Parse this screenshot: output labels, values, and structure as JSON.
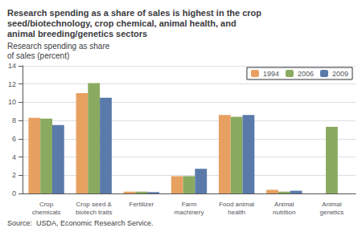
{
  "chart_data": {
    "type": "bar",
    "title": "Research spending as a share of sales is highest in the crop\nseed/biotechnology, crop chemical, animal health, and\nanimal breeding/genetics sectors",
    "ylabel": "Research spending as share\nof sales (percent)",
    "annotations": [
      "Source:  USDA, Economic Research Service."
    ],
    "categories": [
      "Crop\nchemicals",
      "Crop seed &\nbiotech traits",
      "Fertilizer",
      "Farm\nmachinery",
      "Food animal\nhealth",
      "Animal\nnutrition",
      "Animal\ngenetics"
    ],
    "series": [
      {
        "name": "1994",
        "color": "#E8A060",
        "values": [
          8.3,
          11.0,
          0.2,
          1.9,
          8.6,
          0.4,
          0.0
        ]
      },
      {
        "name": "2006",
        "color": "#8AAA60",
        "values": [
          8.2,
          12.1,
          0.2,
          1.9,
          8.4,
          0.2,
          7.3
        ]
      },
      {
        "name": "2009",
        "color": "#5A7AAA",
        "values": [
          7.5,
          10.5,
          0.15,
          2.7,
          8.6,
          0.3,
          0.0
        ]
      }
    ],
    "ylim": [
      0,
      14
    ],
    "yticks": [
      0,
      2,
      4,
      6,
      8,
      10,
      12,
      14
    ],
    "grid": true,
    "legend": "upper right"
  }
}
